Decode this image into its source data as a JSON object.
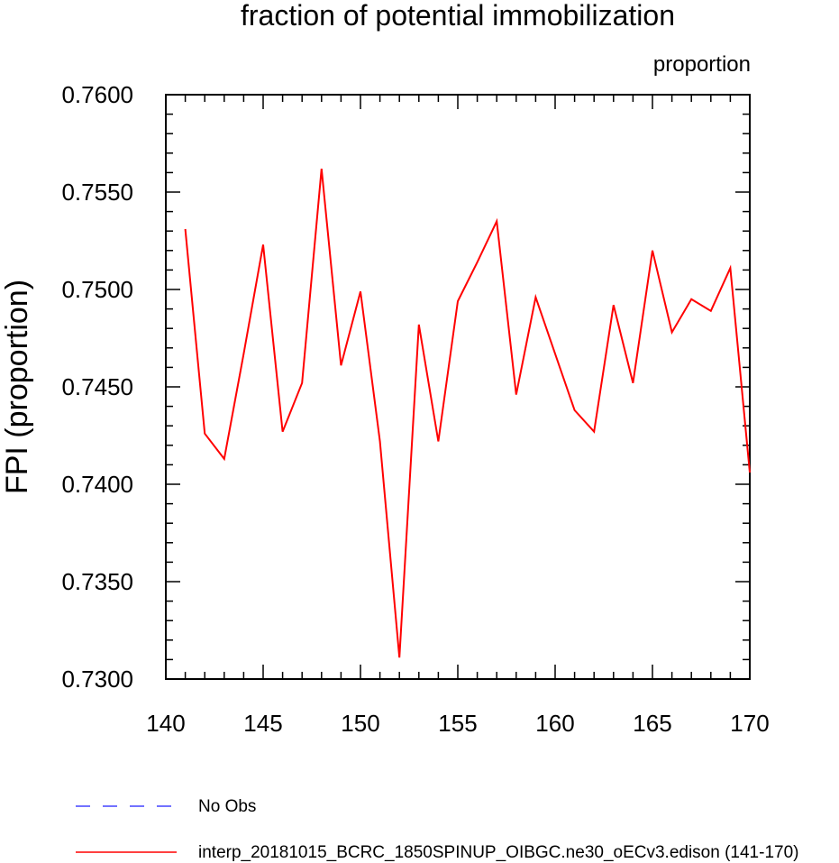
{
  "chart_data": {
    "type": "line",
    "title": "fraction of potential immobilization",
    "units_label": "proportion",
    "ylabel": "FPI  (proportion)",
    "xlabel": "",
    "xlim": [
      140,
      170
    ],
    "ylim": [
      0.73,
      0.76
    ],
    "x_ticks": [
      140,
      145,
      150,
      155,
      160,
      165,
      170
    ],
    "x_tick_labels": [
      "140",
      "145",
      "150",
      "155",
      "160",
      "165",
      "170"
    ],
    "y_ticks": [
      0.73,
      0.735,
      0.74,
      0.745,
      0.75,
      0.755,
      0.76
    ],
    "y_tick_labels": [
      "0.7300",
      "0.7350",
      "0.7400",
      "0.7450",
      "0.7500",
      "0.7550",
      "0.7600"
    ],
    "grid": false,
    "legend_position": "bottom",
    "series": [
      {
        "name": "interp_20181015_BCRC_1850SPINUP_OIBGC.ne30_oECv3.edison (141-170)",
        "color": "#ff0000",
        "style": "solid",
        "x": [
          141,
          142,
          143,
          144,
          145,
          146,
          147,
          148,
          149,
          150,
          151,
          152,
          153,
          154,
          155,
          156,
          157,
          158,
          159,
          160,
          161,
          162,
          163,
          164,
          165,
          166,
          167,
          168,
          169,
          170
        ],
        "values": [
          0.7531,
          0.7426,
          0.7413,
          0.7467,
          0.7523,
          0.7427,
          0.7452,
          0.7562,
          0.7461,
          0.7499,
          0.7422,
          0.7311,
          0.7482,
          0.7422,
          0.7494,
          0.7514,
          0.7535,
          0.7446,
          0.7496,
          0.7467,
          0.7438,
          0.7427,
          0.7492,
          0.7452,
          0.752,
          0.7478,
          0.7495,
          0.7489,
          0.7511,
          0.7406
        ]
      }
    ],
    "legend": [
      {
        "label": "No Obs",
        "color": "#4444ff",
        "style": "dashed"
      },
      {
        "label": "interp_20181015_BCRC_1850SPINUP_OIBGC.ne30_oECv3.edison (141-170)",
        "color": "#ff0000",
        "style": "solid"
      }
    ]
  }
}
